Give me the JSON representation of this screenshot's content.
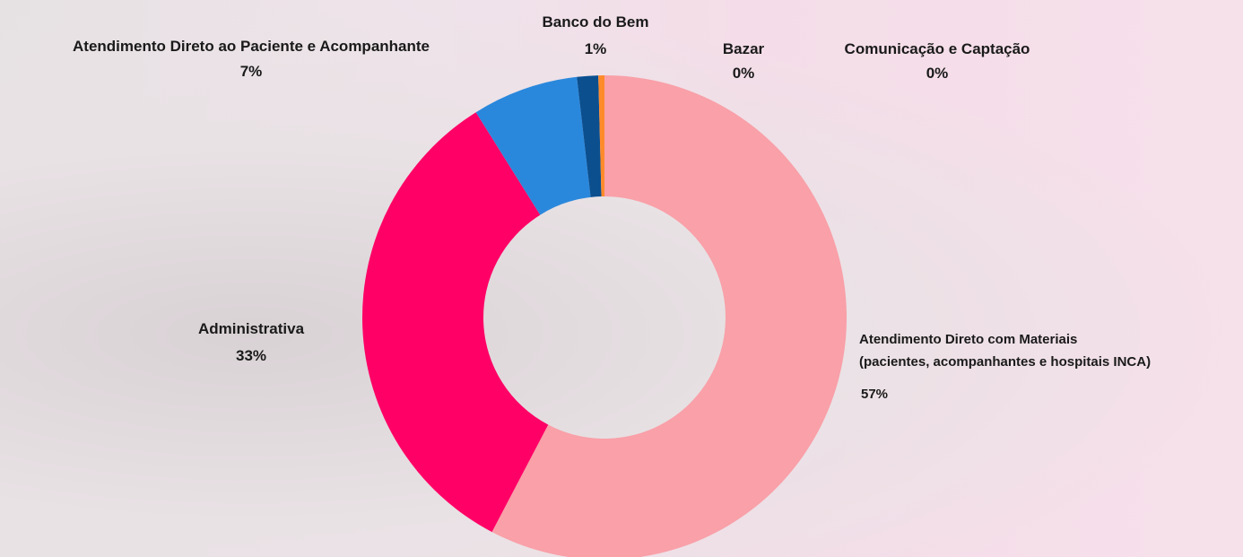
{
  "chart_data": {
    "type": "donut",
    "categories": [
      "Atendimento Direto com Materiais\n(pacientes, acompanhantes e hospitais INCA)",
      "Administrativa",
      "Atendimento Direto ao Paciente e Acompanhante",
      "Banco do Bem",
      "Bazar",
      "Comunicação e Captação"
    ],
    "values": [
      57,
      33,
      7,
      1.4,
      0.4,
      0
    ],
    "value_labels": [
      "57%",
      "33%",
      "7%",
      "1%",
      "0%",
      "0%"
    ],
    "colors": [
      "#f9a0a8",
      "#ff0066",
      "#2a88dc",
      "#0b4f8f",
      "#ff8a2a",
      "#7a2a8a"
    ]
  }
}
